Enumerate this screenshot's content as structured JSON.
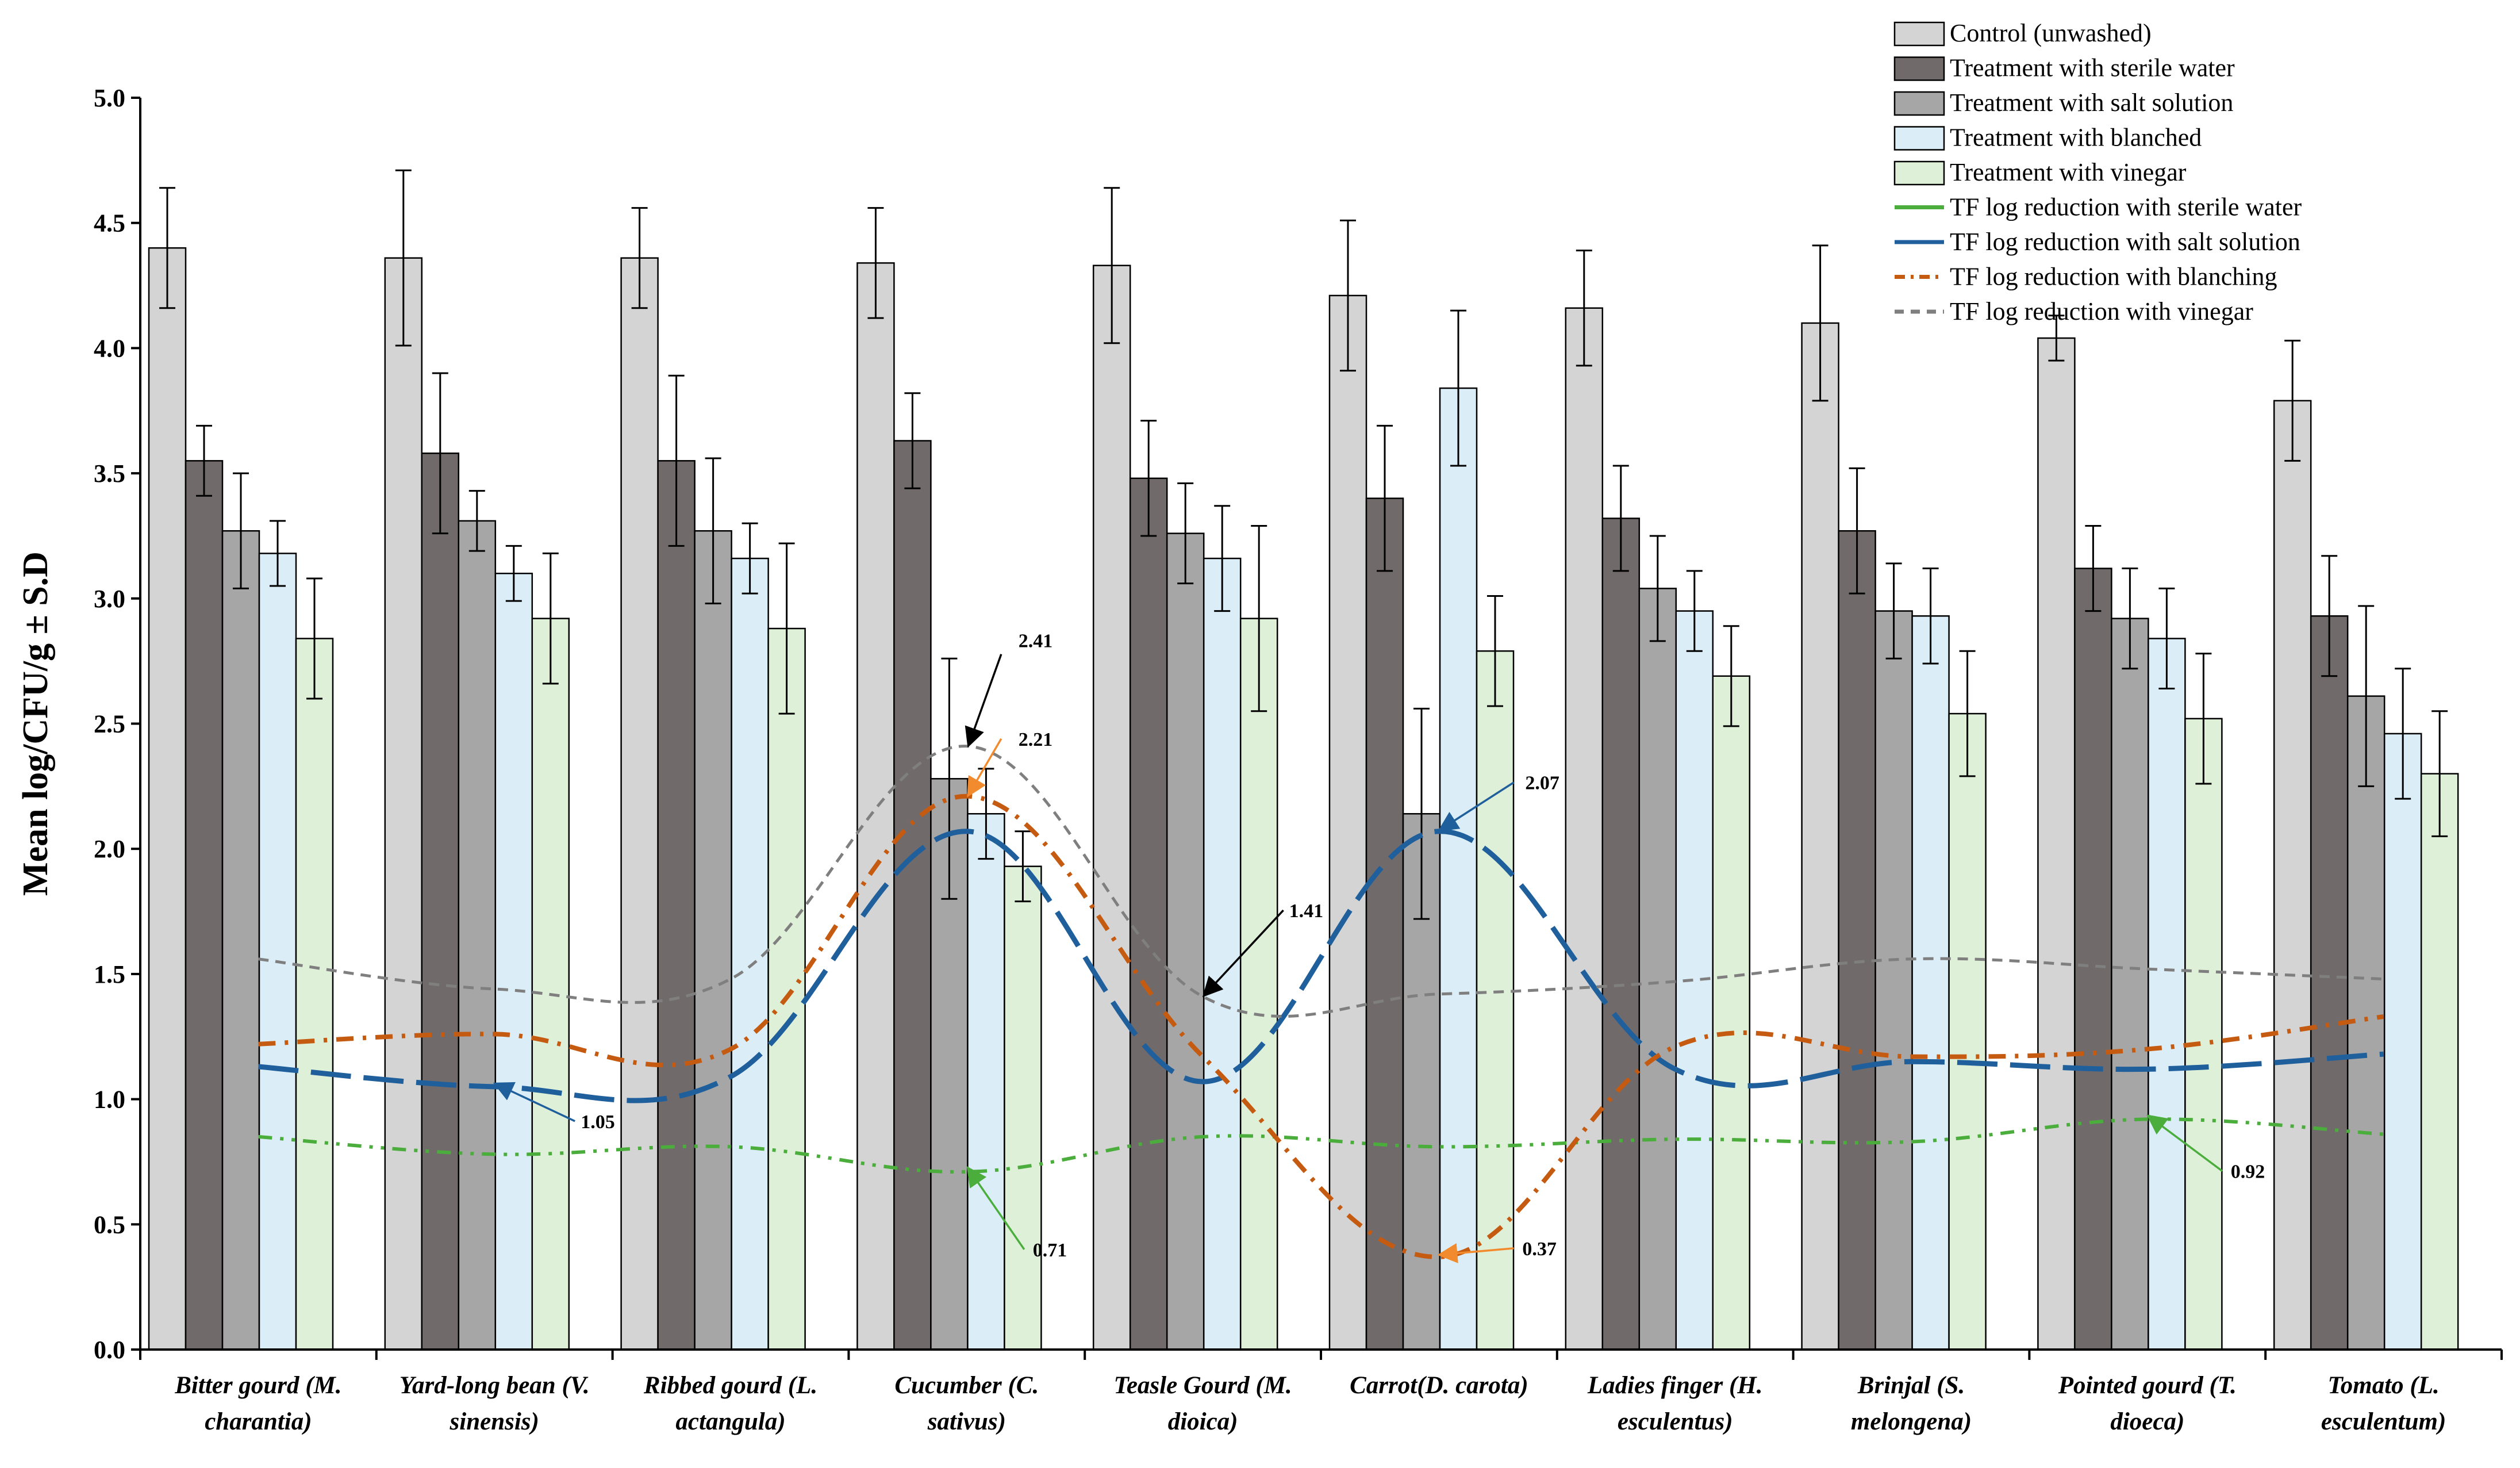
{
  "chart_data": {
    "type": "bar",
    "title": "",
    "xlabel": "",
    "ylabel": "Mean log/CFU/g ± S.D",
    "ylim": [
      0,
      5.0
    ],
    "y_ticks": [
      "0.0",
      "0.5",
      "1.0",
      "1.5",
      "2.0",
      "2.5",
      "3.0",
      "3.5",
      "4.0",
      "4.5",
      "5.0"
    ],
    "grid": false,
    "legend_position": "top-right",
    "categories": [
      [
        "Bitter gourd (M.",
        "charantia)"
      ],
      [
        "Yard-long bean (V.",
        "sinensis)"
      ],
      [
        "Ribbed gourd (L.",
        "actangula)"
      ],
      [
        "Cucumber (C.",
        "sativus)"
      ],
      [
        "Teasle Gourd (M.",
        "dioica)"
      ],
      [
        "Carrot(D. carota)"
      ],
      [
        "Ladies finger (H.",
        "esculentus)"
      ],
      [
        "Brinjal (S.",
        "melongena)"
      ],
      [
        "Pointed gourd (T.",
        "dioeca)"
      ],
      [
        "Tomato (L.",
        "esculentum)"
      ]
    ],
    "bar_series": [
      {
        "name": "Control (unwashed)",
        "color": "#d4d4d4",
        "values": [
          4.4,
          4.36,
          4.36,
          4.34,
          4.33,
          4.21,
          4.16,
          4.1,
          4.04,
          3.79
        ],
        "errors": [
          0.24,
          0.35,
          0.2,
          0.22,
          0.31,
          0.3,
          0.23,
          0.31,
          0.09,
          0.24
        ]
      },
      {
        "name": "Treatment with sterile water",
        "color": "#716a6a",
        "values": [
          3.55,
          3.58,
          3.55,
          3.63,
          3.48,
          3.4,
          3.32,
          3.27,
          3.12,
          2.93
        ],
        "errors": [
          0.14,
          0.32,
          0.34,
          0.19,
          0.23,
          0.29,
          0.21,
          0.25,
          0.17,
          0.24
        ]
      },
      {
        "name": "Treatment with salt solution",
        "color": "#a6a6a6",
        "values": [
          3.27,
          3.31,
          3.27,
          2.28,
          3.26,
          2.14,
          3.04,
          2.95,
          2.92,
          2.61
        ],
        "errors": [
          0.23,
          0.12,
          0.29,
          0.48,
          0.2,
          0.42,
          0.21,
          0.19,
          0.2,
          0.36
        ]
      },
      {
        "name": "Treatment with blanched",
        "color": "#dbeef8",
        "values": [
          3.18,
          3.1,
          3.16,
          2.14,
          3.16,
          3.84,
          2.95,
          2.93,
          2.84,
          2.46
        ],
        "errors": [
          0.13,
          0.11,
          0.14,
          0.18,
          0.21,
          0.31,
          0.16,
          0.19,
          0.2,
          0.26
        ]
      },
      {
        "name": "Treatment with vinegar",
        "color": "#dff0d8",
        "values": [
          2.84,
          2.92,
          2.88,
          1.93,
          2.92,
          2.79,
          2.69,
          2.54,
          2.52,
          2.3
        ],
        "errors": [
          0.24,
          0.26,
          0.34,
          0.14,
          0.37,
          0.22,
          0.2,
          0.25,
          0.26,
          0.25
        ]
      }
    ],
    "line_series": [
      {
        "name": "TF log reduction with sterile water",
        "color": "#4aad3c",
        "dash": "24,14,6,14,6,14",
        "values": [
          0.85,
          0.78,
          0.81,
          0.71,
          0.85,
          0.81,
          0.84,
          0.83,
          0.92,
          0.86
        ]
      },
      {
        "name": "TF log reduction with salt solution",
        "color": "#1f5f9c",
        "dash": "70,22",
        "values": [
          1.13,
          1.05,
          1.09,
          2.07,
          1.07,
          2.07,
          1.12,
          1.15,
          1.12,
          1.18
        ]
      },
      {
        "name": "TF log reduction with blanching",
        "color": "#c55a11",
        "dash": "30,16,6,16",
        "values": [
          1.22,
          1.26,
          1.2,
          2.21,
          1.17,
          0.37,
          1.21,
          1.17,
          1.2,
          1.33
        ]
      },
      {
        "name": "TF log reduction with vinegar",
        "color": "#7f7f7f",
        "dash": "18,12",
        "values": [
          1.56,
          1.44,
          1.48,
          2.41,
          1.41,
          1.42,
          1.47,
          1.56,
          1.52,
          1.48
        ]
      }
    ],
    "annotations": [
      {
        "text": "2.41",
        "series": "TF log reduction with vinegar",
        "category_index": 3,
        "value": 2.41,
        "arrow_color": "#000000"
      },
      {
        "text": "2.21",
        "series": "TF log reduction with blanching",
        "category_index": 3,
        "value": 2.21,
        "arrow_color": "#f28a2e"
      },
      {
        "text": "1.41",
        "series": "TF log reduction with vinegar",
        "category_index": 4,
        "value": 1.41,
        "arrow_color": "#000000"
      },
      {
        "text": "2.07",
        "series": "TF log reduction with salt solution",
        "category_index": 5,
        "value": 2.07,
        "arrow_color": "#1f5f9c"
      },
      {
        "text": "1.05",
        "series": "TF log reduction with salt solution",
        "category_index": 1,
        "value": 1.05,
        "arrow_color": "#1f5f9c"
      },
      {
        "text": "0.71",
        "series": "TF log reduction with sterile water",
        "category_index": 3,
        "value": 0.71,
        "arrow_color": "#4aad3c"
      },
      {
        "text": "0.37",
        "series": "TF log reduction with blanching",
        "category_index": 5,
        "value": 0.37,
        "arrow_color": "#f28a2e"
      },
      {
        "text": "0.92",
        "series": "TF log reduction with sterile water",
        "category_index": 8,
        "value": 0.92,
        "arrow_color": "#4aad3c"
      }
    ]
  }
}
